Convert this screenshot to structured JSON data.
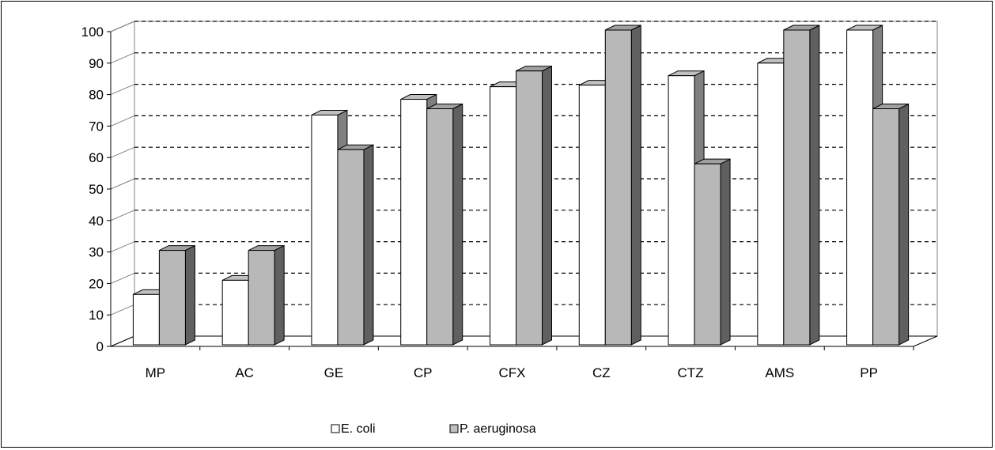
{
  "chart_data": {
    "type": "bar",
    "title": "",
    "xlabel": "",
    "ylabel": "",
    "categories": [
      "MP",
      "AC",
      "GE",
      "CP",
      "CFX",
      "CZ",
      "CTZ",
      "AMS",
      "PP"
    ],
    "series": [
      {
        "name": "E. coli",
        "values": [
          16,
          20.5,
          73,
          78,
          82,
          82.5,
          85.5,
          89.5,
          100
        ],
        "color": "#ffffff"
      },
      {
        "name": "P. aeruginosa",
        "values": [
          30,
          30,
          62,
          75,
          87,
          100,
          57.5,
          100,
          75
        ],
        "color": "#c0c0c0"
      }
    ],
    "ylim": [
      0,
      100
    ],
    "yticks": [
      0,
      10,
      20,
      30,
      40,
      50,
      60,
      70,
      80,
      90,
      100
    ],
    "grid": true,
    "grid_style": "dashed",
    "three_d": true,
    "legend_position": "bottom"
  }
}
